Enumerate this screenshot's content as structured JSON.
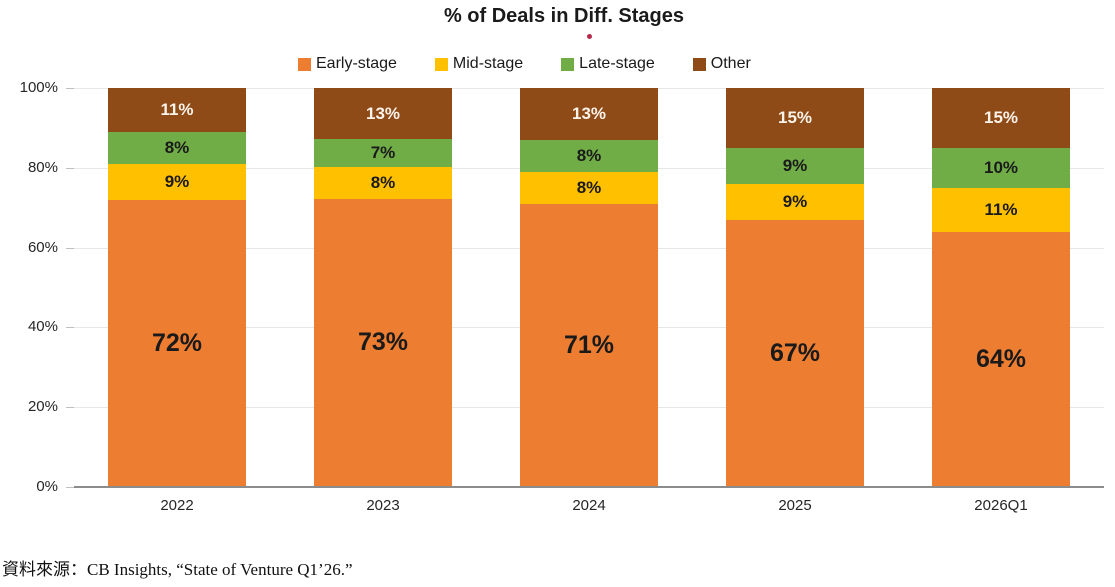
{
  "title": "% of Deals in Diff. Stages",
  "title_marker": {
    "name": "red-dot",
    "color": "#b5294a"
  },
  "footer": {
    "source_text": "資料來源：CB Insights, “State of Venture Q1’26.”"
  },
  "chart_data": {
    "type": "bar",
    "stacked": true,
    "title": "% of Deals in Diff. Stages",
    "categories": [
      "2022",
      "2023",
      "2024",
      "2025",
      "2026Q1"
    ],
    "series": [
      {
        "name": "Early-stage",
        "color": "#ED7D31",
        "values": [
          72,
          73,
          71,
          67,
          64
        ]
      },
      {
        "name": "Mid-stage",
        "color": "#FFC000",
        "values": [
          9,
          8,
          8,
          9,
          11
        ]
      },
      {
        "name": "Late-stage",
        "color": "#70AD47",
        "values": [
          8,
          7,
          8,
          9,
          10
        ]
      },
      {
        "name": "Other",
        "color": "#8E4A17",
        "values": [
          11,
          13,
          13,
          15,
          15
        ]
      }
    ],
    "data_label_suffix": "%",
    "y_ticks": [
      {
        "value": 0,
        "label": "0%"
      },
      {
        "value": 20,
        "label": "20%"
      },
      {
        "value": 40,
        "label": "40%"
      },
      {
        "value": 60,
        "label": "60%"
      },
      {
        "value": 80,
        "label": "80%"
      },
      {
        "value": 100,
        "label": "100%"
      }
    ],
    "ylim": [
      0,
      100
    ],
    "grid": true,
    "legend_position": "top"
  }
}
